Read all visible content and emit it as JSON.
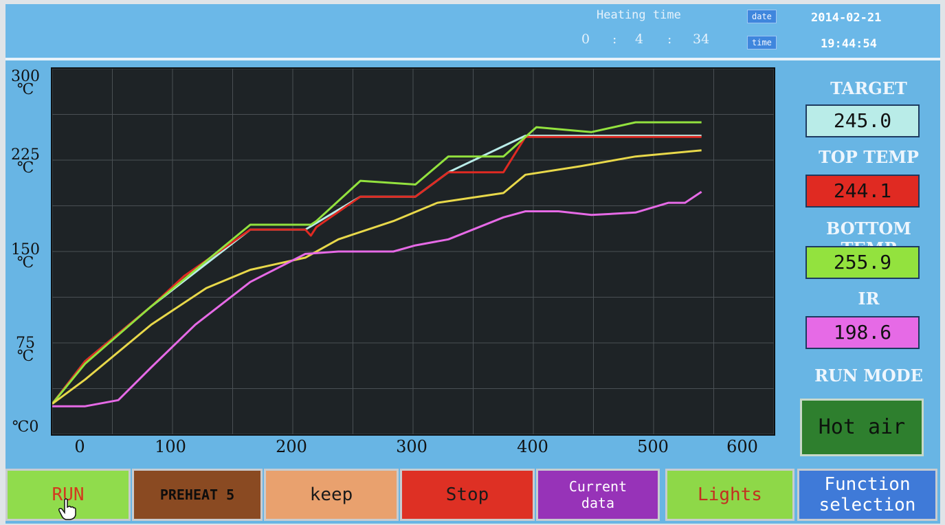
{
  "header": {
    "heating_time_label": "Heating time",
    "heating_h": "0",
    "sep1": ":",
    "heating_m": "4",
    "sep2": ":",
    "heating_s": "34",
    "date_label": "date",
    "date_value": "2014-02-21",
    "time_label": "time",
    "time_value": "19:44:54"
  },
  "side": {
    "target_label": "TARGET",
    "target_value": "245.0",
    "top_label": "TOP TEMP",
    "top_value": "244.1",
    "bottom_label": "BOTTOM TEMP",
    "bottom_value": "255.9",
    "ir_label": "IR",
    "ir_value": "198.6",
    "mode_label": "RUN MODE",
    "mode_value": "Hot air"
  },
  "buttons": {
    "run": "RUN",
    "preheat": "PREHEAT 5",
    "keep": "keep",
    "stop": "Stop",
    "current_line1": "Current",
    "current_line2": "data",
    "lights": "Lights",
    "function_line1": "Function",
    "function_line2": "selection"
  },
  "colors": {
    "target": "#b9ece8",
    "top": "#e02a22",
    "bottom": "#93e23e",
    "ir": "#e66ae6",
    "yellow_curve": "#e8d84a"
  },
  "chart_data": {
    "type": "line",
    "ytick_labels": [
      {
        "value": "300",
        "unit": "℃"
      },
      {
        "value": "225",
        "unit": "℃"
      },
      {
        "value": "150",
        "unit": "℃"
      },
      {
        "value": "75",
        "unit": "℃"
      },
      {
        "value": "0",
        "unit": "℃"
      }
    ],
    "xticks": [
      "0",
      "100",
      "200",
      "300",
      "400",
      "500",
      "600"
    ],
    "xlim": [
      -30,
      570
    ],
    "ylim": [
      0,
      300
    ],
    "grid": true,
    "series": [
      {
        "color": "#b9ece8",
        "x": [
          -30,
          0,
          60,
          150,
          200,
          250,
          300,
          330,
          400,
          450,
          500,
          530,
          560
        ],
        "y": [
          25,
          60,
          105,
          168,
          168,
          195,
          195,
          215,
          245,
          245,
          245,
          245,
          245
        ]
      },
      {
        "color": "#e02a22",
        "x": [
          -30,
          0,
          60,
          90,
          150,
          200,
          205,
          210,
          250,
          300,
          330,
          380,
          400,
          450,
          500,
          530,
          560
        ],
        "y": [
          25,
          60,
          105,
          130,
          168,
          168,
          163,
          170,
          195,
          195,
          215,
          215,
          244,
          244,
          244,
          244,
          244
        ]
      },
      {
        "color": "#93e23e",
        "x": [
          -30,
          0,
          60,
          150,
          205,
          210,
          250,
          300,
          330,
          380,
          410,
          460,
          500,
          530,
          560
        ],
        "y": [
          25,
          58,
          105,
          172,
          172,
          175,
          208,
          205,
          228,
          228,
          252,
          248,
          256,
          256,
          256
        ]
      },
      {
        "color": "#e8d84a",
        "x": [
          -30,
          0,
          60,
          110,
          150,
          200,
          230,
          280,
          320,
          380,
          400,
          450,
          500,
          560
        ],
        "y": [
          25,
          45,
          90,
          120,
          135,
          145,
          160,
          175,
          190,
          198,
          213,
          220,
          228,
          233
        ]
      },
      {
        "color": "#e66ae6",
        "x": [
          -30,
          0,
          30,
          60,
          100,
          150,
          200,
          230,
          280,
          300,
          330,
          380,
          400,
          430,
          460,
          500,
          530,
          545,
          560
        ],
        "y": [
          23,
          23,
          28,
          55,
          90,
          125,
          148,
          150,
          150,
          155,
          160,
          178,
          183,
          183,
          180,
          182,
          190,
          190,
          199
        ]
      }
    ]
  }
}
